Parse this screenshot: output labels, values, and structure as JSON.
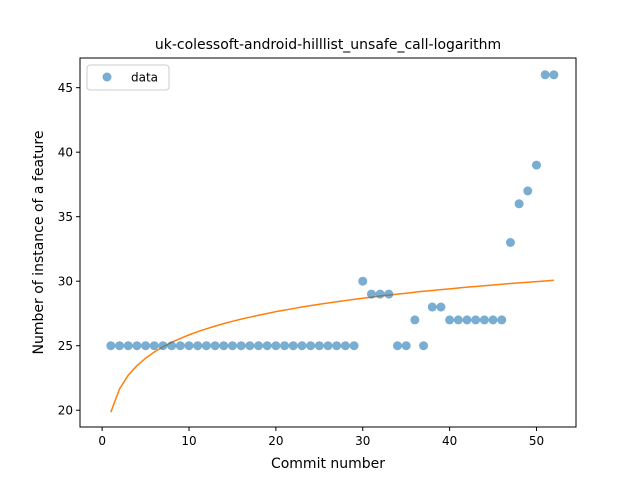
{
  "chart_data": {
    "type": "scatter",
    "title": "uk-colessoft-android-hilllist_unsafe_call-logarithm",
    "xlabel": "Commit number",
    "ylabel": "Number of instance of a feature",
    "xlim": [
      -2.55,
      54.55
    ],
    "ylim": [
      18.7,
      47.3
    ],
    "xticks": [
      0,
      10,
      20,
      30,
      40,
      50
    ],
    "yticks": [
      20,
      25,
      30,
      35,
      40,
      45
    ],
    "grid": false,
    "legend_position": "top-left",
    "series": [
      {
        "name": "data",
        "kind": "scatter",
        "color": "#1f77b4",
        "x": [
          1,
          2,
          3,
          4,
          5,
          6,
          7,
          8,
          9,
          10,
          11,
          12,
          13,
          14,
          15,
          16,
          17,
          18,
          19,
          20,
          21,
          22,
          23,
          24,
          25,
          26,
          27,
          28,
          29,
          30,
          31,
          32,
          33,
          34,
          35,
          36,
          37,
          38,
          39,
          40,
          41,
          42,
          43,
          44,
          45,
          46,
          47,
          48,
          49,
          50,
          51,
          52
        ],
        "y": [
          25,
          25,
          25,
          25,
          25,
          25,
          25,
          25,
          25,
          25,
          25,
          25,
          25,
          25,
          25,
          25,
          25,
          25,
          25,
          25,
          25,
          25,
          25,
          25,
          25,
          25,
          25,
          25,
          25,
          30,
          29,
          29,
          29,
          25,
          25,
          27,
          25,
          28,
          28,
          27,
          27,
          27,
          27,
          27,
          27,
          27,
          33,
          36,
          37,
          39,
          46,
          46
        ]
      },
      {
        "kind": "line",
        "color": "#ff7f0e",
        "x": [
          1,
          2,
          3,
          4,
          5,
          6,
          7,
          8,
          9,
          10,
          11,
          12,
          13,
          14,
          15,
          16,
          17,
          18,
          19,
          20,
          21,
          22,
          23,
          24,
          25,
          26,
          27,
          28,
          29,
          30,
          31,
          32,
          33,
          34,
          35,
          36,
          37,
          38,
          39,
          40,
          41,
          42,
          43,
          44,
          45,
          46,
          47,
          48,
          49,
          50,
          51,
          52
        ],
        "y": [
          19.85,
          21.65,
          22.71,
          23.45,
          24.03,
          24.51,
          24.91,
          25.26,
          25.56,
          25.84,
          26.09,
          26.31,
          26.52,
          26.71,
          26.89,
          27.06,
          27.21,
          27.36,
          27.5,
          27.64,
          27.76,
          27.88,
          28.0,
          28.11,
          28.21,
          28.31,
          28.41,
          28.5,
          28.59,
          28.68,
          28.76,
          28.85,
          28.92,
          29.0,
          29.07,
          29.15,
          29.22,
          29.28,
          29.35,
          29.41,
          29.47,
          29.54,
          29.59,
          29.65,
          29.71,
          29.76,
          29.82,
          29.87,
          29.92,
          29.97,
          30.02,
          30.07
        ]
      }
    ]
  }
}
